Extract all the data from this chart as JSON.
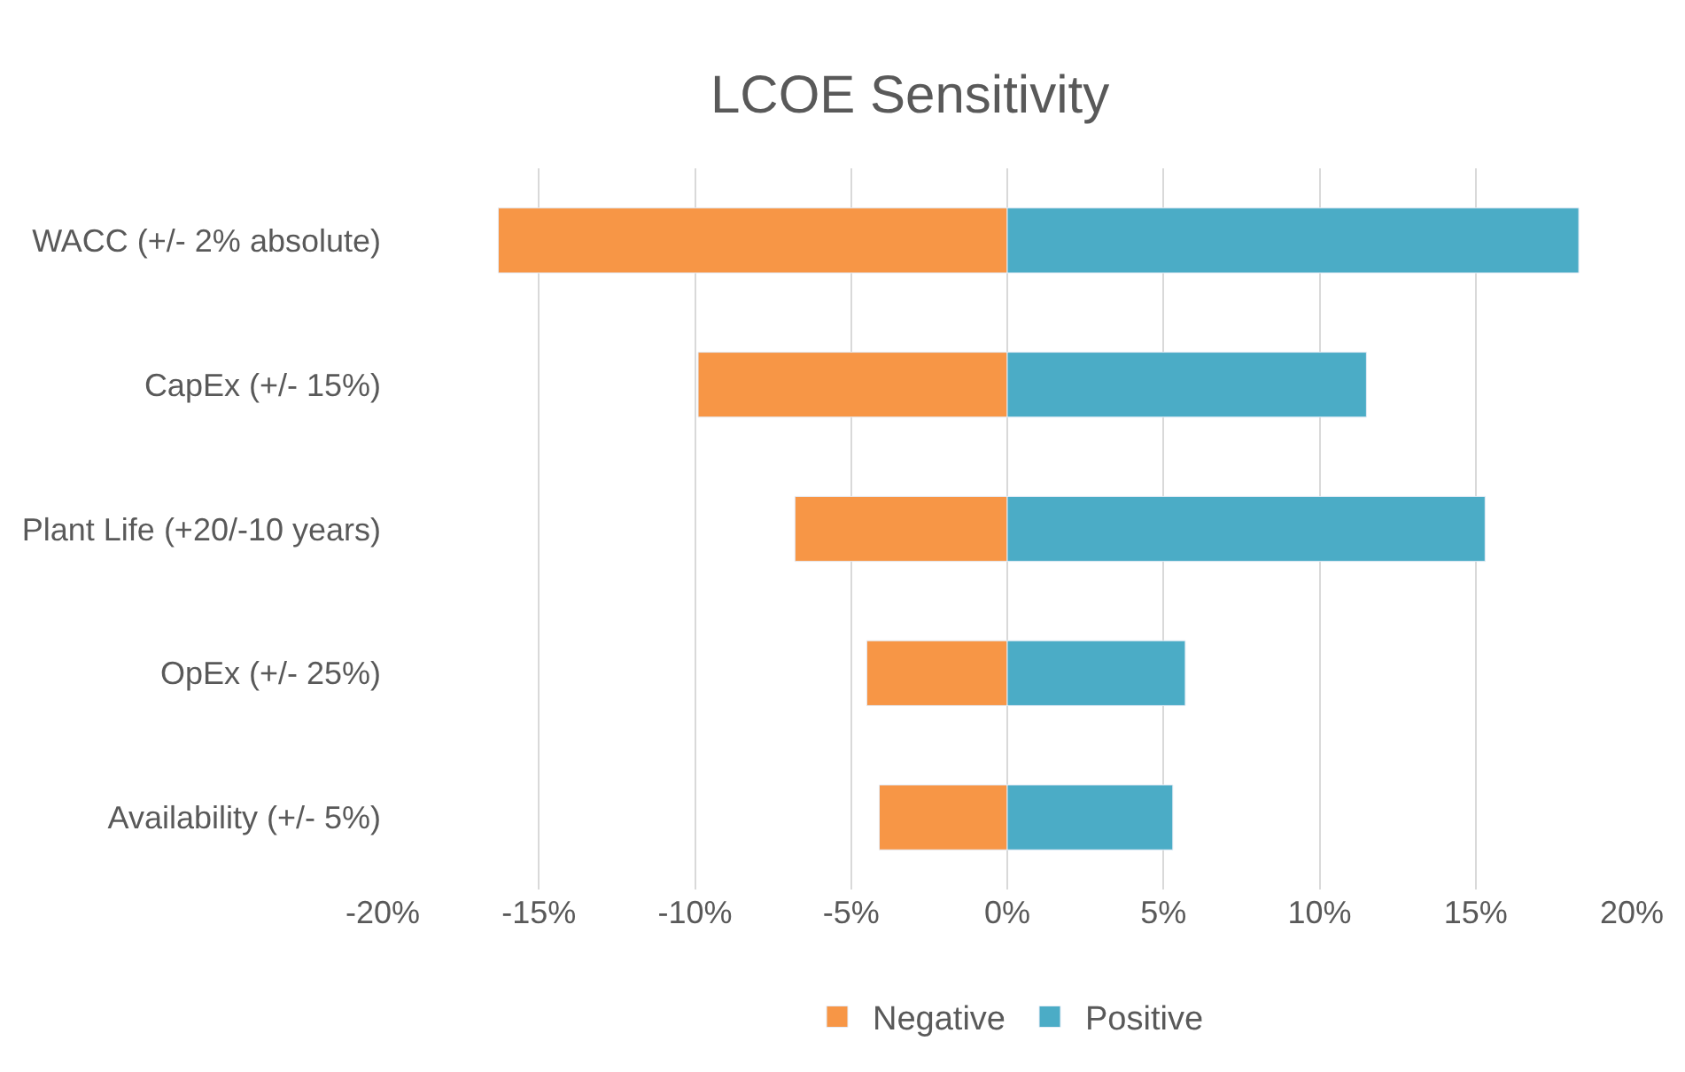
{
  "chart_data": {
    "type": "bar",
    "title": "LCOE Sensitivity",
    "orientation": "horizontal",
    "stacked": true,
    "categories": [
      "WACC (+/- 2% absolute)",
      "CapEx (+/- 15%)",
      "Plant Life (+20/-10 years)",
      "OpEx (+/- 25%)",
      "Availability (+/- 5%)"
    ],
    "series": [
      {
        "name": "Negative",
        "color": "#f79646",
        "values": [
          -16.3,
          -9.9,
          -6.8,
          -4.5,
          -4.1
        ]
      },
      {
        "name": "Positive",
        "color": "#4bacc6",
        "values": [
          18.3,
          11.5,
          15.3,
          5.7,
          5.3
        ]
      }
    ],
    "xlim": [
      -20,
      20
    ],
    "xticks": [
      {
        "value": -20,
        "label": "-20%"
      },
      {
        "value": -15,
        "label": "-15%"
      },
      {
        "value": -10,
        "label": "-10%"
      },
      {
        "value": -5,
        "label": "-5%"
      },
      {
        "value": 0,
        "label": "0%"
      },
      {
        "value": 5,
        "label": "5%"
      },
      {
        "value": 10,
        "label": "10%"
      },
      {
        "value": 15,
        "label": "15%"
      },
      {
        "value": 20,
        "label": "20%"
      }
    ],
    "grid": "x",
    "legend": "bottom"
  }
}
